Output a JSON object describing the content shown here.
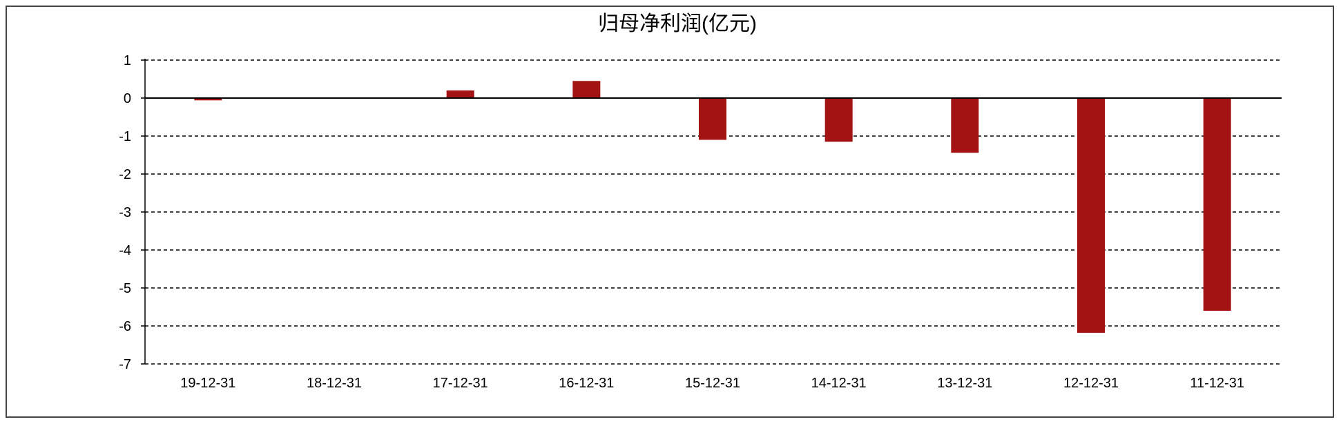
{
  "chart_data": {
    "type": "bar",
    "title": "归母净利润(亿元)",
    "xlabel": "",
    "ylabel": "",
    "categories": [
      "19-12-31",
      "18-12-31",
      "17-12-31",
      "16-12-31",
      "15-12-31",
      "14-12-31",
      "13-12-31",
      "12-12-31",
      "11-12-31"
    ],
    "values": [
      -0.06,
      0.0,
      0.2,
      0.45,
      -1.1,
      -1.15,
      -1.44,
      -6.18,
      -5.6
    ],
    "ylim": [
      -7,
      1
    ],
    "yticks": [
      "1",
      "0",
      "-1",
      "-2",
      "-3",
      "-4",
      "-5",
      "-6",
      "-7"
    ],
    "grid": "horizontal dashed",
    "legend": "none",
    "bar_color": "#A31314"
  }
}
